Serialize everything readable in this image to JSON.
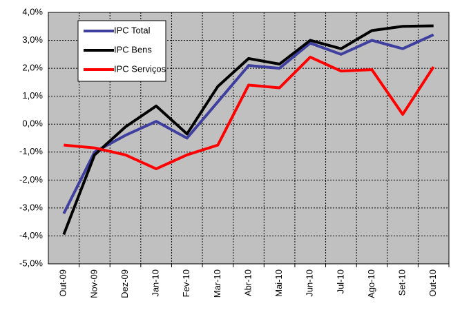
{
  "chart_data": {
    "type": "line",
    "categories": [
      "Out-09",
      "Nov-09",
      "Dez-09",
      "Jan-10",
      "Fev-10",
      "Mar-10",
      "Abr-10",
      "Mai-10",
      "Jun-10",
      "Jul-10",
      "Ago-10",
      "Set-10",
      "Out-10"
    ],
    "series": [
      {
        "name": "IPC Total",
        "color": "#3f3f9f",
        "values": [
          -3.2,
          -1.0,
          -0.4,
          0.1,
          -0.5,
          0.8,
          2.1,
          2.0,
          2.9,
          2.5,
          3.0,
          2.7,
          3.2
        ]
      },
      {
        "name": "IPC Bens",
        "color": "#000000",
        "values": [
          -3.95,
          -1.1,
          -0.1,
          0.65,
          -0.35,
          1.35,
          2.35,
          2.15,
          3.0,
          2.7,
          3.35,
          3.5,
          3.52
        ]
      },
      {
        "name": "IPC Serviços",
        "color": "#ff0000",
        "values": [
          -0.75,
          -0.85,
          -1.1,
          -1.6,
          -1.1,
          -0.75,
          1.4,
          1.3,
          2.4,
          1.9,
          1.95,
          0.35,
          2.05
        ]
      }
    ],
    "ylim": [
      -5,
      4
    ],
    "yticks": [
      {
        "value": -5,
        "label": "-5,0%"
      },
      {
        "value": -4,
        "label": "-4,0%"
      },
      {
        "value": -3,
        "label": "-3,0%"
      },
      {
        "value": -2,
        "label": "-2,0%"
      },
      {
        "value": -1,
        "label": "-1,0%"
      },
      {
        "value": 0,
        "label": "0,0%"
      },
      {
        "value": 1,
        "label": "1,0%"
      },
      {
        "value": 2,
        "label": "2,0%"
      },
      {
        "value": 3,
        "label": "3,0%"
      },
      {
        "value": 4,
        "label": "4,0%"
      }
    ],
    "grid": true,
    "legend": "upper-left"
  }
}
